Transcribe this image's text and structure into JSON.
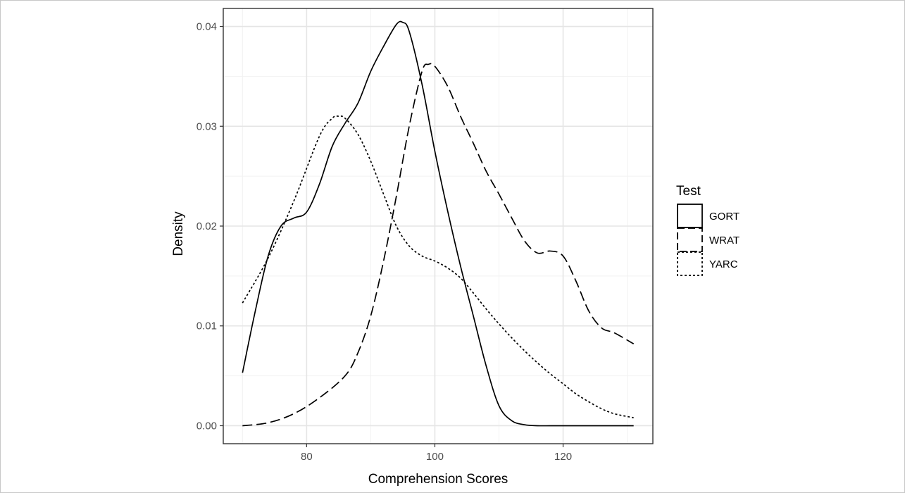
{
  "chart_data": {
    "type": "line",
    "title": "",
    "xlabel": "Comprehension Scores",
    "ylabel": "Density",
    "xlim": [
      67,
      134
    ],
    "ylim": [
      -0.0018,
      0.0418
    ],
    "xticks": [
      80,
      100,
      120
    ],
    "yticks": [
      0.0,
      0.01,
      0.02,
      0.03,
      0.04
    ],
    "xtick_labels": [
      "80",
      "100",
      "120"
    ],
    "ytick_labels": [
      "0.00",
      "0.01",
      "0.02",
      "0.03",
      "0.04"
    ],
    "grid": true,
    "legend": {
      "title": "Test",
      "position": "right"
    },
    "series": [
      {
        "name": "GORT",
        "linestyle": "solid",
        "x": [
          70,
          72,
          74,
          76,
          78,
          80,
          82,
          84,
          86,
          88,
          90,
          92,
          94,
          95,
          96,
          98,
          100,
          102,
          104,
          106,
          108,
          110,
          112,
          114,
          116,
          118,
          120,
          125,
          131
        ],
        "y": [
          0.0053,
          0.0115,
          0.017,
          0.02,
          0.0208,
          0.0214,
          0.0242,
          0.028,
          0.0303,
          0.0323,
          0.0355,
          0.038,
          0.0402,
          0.0404,
          0.0395,
          0.0342,
          0.0275,
          0.0215,
          0.016,
          0.011,
          0.006,
          0.002,
          0.0005,
          0.0001,
          0.0,
          0.0,
          0.0,
          0.0,
          0.0
        ]
      },
      {
        "name": "WRAT",
        "linestyle": "dashed",
        "x": [
          70,
          74,
          78,
          82,
          86,
          88,
          90,
          92,
          94,
          96,
          98,
          99,
          100,
          102,
          104,
          106,
          108,
          110,
          112,
          114,
          116,
          118,
          120,
          122,
          124,
          126,
          128,
          131
        ],
        "y": [
          0.0,
          0.0003,
          0.0012,
          0.0028,
          0.005,
          0.0073,
          0.011,
          0.0165,
          0.023,
          0.03,
          0.0355,
          0.0362,
          0.036,
          0.034,
          0.031,
          0.0283,
          0.0255,
          0.0232,
          0.0208,
          0.0185,
          0.0173,
          0.0175,
          0.017,
          0.0145,
          0.0115,
          0.0098,
          0.0093,
          0.0082
        ]
      },
      {
        "name": "YARC",
        "linestyle": "dotted",
        "x": [
          70,
          74,
          78,
          82,
          84,
          85,
          86,
          88,
          90,
          92,
          94,
          96,
          98,
          100,
          102,
          104,
          106,
          108,
          110,
          112,
          114,
          116,
          118,
          120,
          122,
          124,
          126,
          128,
          131
        ],
        "y": [
          0.0123,
          0.0168,
          0.0225,
          0.029,
          0.0308,
          0.031,
          0.0308,
          0.0292,
          0.0265,
          0.0232,
          0.02,
          0.018,
          0.017,
          0.0165,
          0.0158,
          0.0148,
          0.0133,
          0.0117,
          0.0102,
          0.0088,
          0.0075,
          0.0063,
          0.0052,
          0.0042,
          0.0032,
          0.0024,
          0.0017,
          0.0012,
          0.0008
        ]
      }
    ]
  },
  "colors": {
    "panel_border": "#333333",
    "grid_major": "#e5e5e5",
    "grid_minor": "#f2f2f2",
    "line": "#000000",
    "tick_text": "#4d4d4d"
  }
}
